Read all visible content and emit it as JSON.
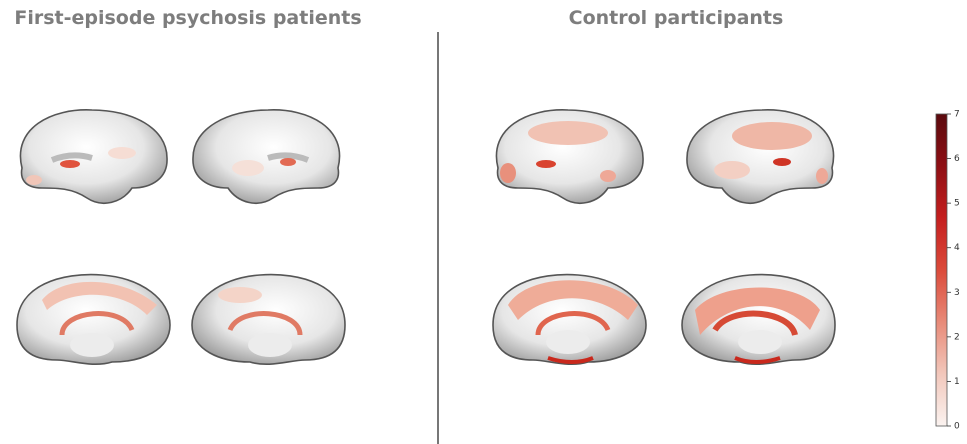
{
  "panels": [
    {
      "title": "First-episode psychosis patients"
    },
    {
      "title": "Control participants"
    }
  ],
  "colorbar": {
    "lim": [
      0,
      7
    ],
    "ticks": [
      0,
      1,
      2,
      3,
      4,
      5,
      6,
      7
    ],
    "colors": [
      "#fbf3f0",
      "#f2c7bb",
      "#e88a78",
      "#db4a3a",
      "#c51f1f",
      "#8e0f14",
      "#5a0a0e"
    ]
  }
}
